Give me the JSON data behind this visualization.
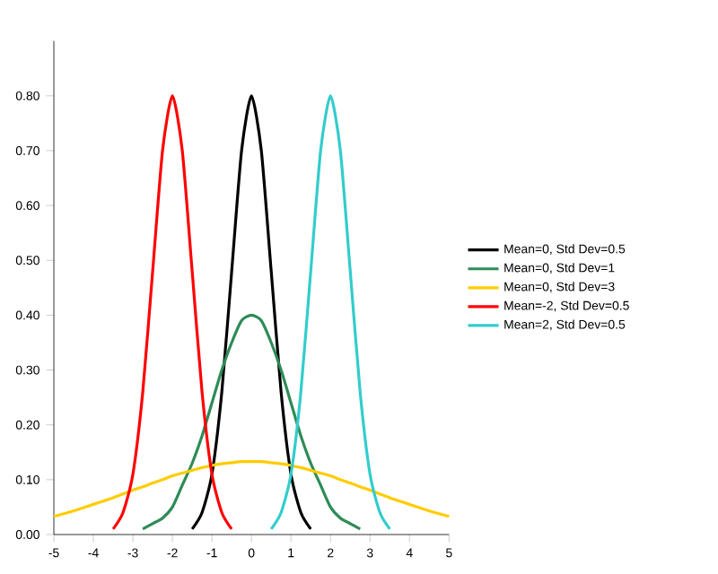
{
  "chart_data": {
    "type": "line",
    "x": [
      -5,
      -4.75,
      -4.5,
      -4.25,
      -4,
      -3.75,
      -3.5,
      -3.25,
      -3,
      -2.75,
      -2.5,
      -2.25,
      -2,
      -1.75,
      -1.5,
      -1.25,
      -1,
      -0.75,
      -0.5,
      -0.25,
      0,
      0.25,
      0.5,
      0.75,
      1,
      1.25,
      1.5,
      1.75,
      2,
      2.25,
      2.5,
      2.75,
      3,
      3.25,
      3.5,
      3.75,
      4,
      4.25,
      4.5,
      4.75,
      5
    ],
    "series": [
      {
        "name": "Mean=0, Std Dev=0.5",
        "color": "#000000",
        "values": [
          null,
          null,
          null,
          null,
          null,
          null,
          null,
          null,
          null,
          null,
          null,
          null,
          null,
          null,
          0.01,
          0.04,
          0.11,
          0.26,
          0.48,
          0.7,
          0.8,
          0.7,
          0.48,
          0.26,
          0.11,
          0.04,
          0.01,
          null,
          null,
          null,
          null,
          null,
          null,
          null,
          null,
          null,
          null,
          null,
          null,
          null,
          null
        ]
      },
      {
        "name": "Mean=0, Std Dev=1",
        "color": "#2e8b57",
        "values": [
          null,
          null,
          null,
          null,
          null,
          null,
          null,
          null,
          null,
          0.01,
          0.02,
          0.03,
          0.05,
          0.09,
          0.13,
          0.18,
          0.24,
          0.3,
          0.35,
          0.39,
          0.4,
          0.39,
          0.35,
          0.3,
          0.24,
          0.18,
          0.13,
          0.09,
          0.05,
          0.03,
          0.02,
          0.01,
          null,
          null,
          null,
          null,
          null,
          null,
          null,
          null,
          null
        ]
      },
      {
        "name": "Mean=0, Std Dev=3",
        "color": "#ffcc00",
        "values": [
          0.033,
          0.038,
          0.043,
          0.049,
          0.055,
          0.061,
          0.067,
          0.074,
          0.081,
          0.087,
          0.094,
          0.1,
          0.107,
          0.112,
          0.117,
          0.122,
          0.126,
          0.129,
          0.131,
          0.133,
          0.133,
          0.133,
          0.131,
          0.129,
          0.126,
          0.122,
          0.117,
          0.112,
          0.107,
          0.1,
          0.094,
          0.087,
          0.081,
          0.074,
          0.067,
          0.061,
          0.055,
          0.049,
          0.043,
          0.038,
          0.033
        ]
      },
      {
        "name": "Mean=-2, Std Dev=0.5",
        "color": "#ff0000",
        "values": [
          null,
          null,
          null,
          null,
          null,
          null,
          0.01,
          0.04,
          0.11,
          0.26,
          0.48,
          0.7,
          0.8,
          0.7,
          0.48,
          0.26,
          0.11,
          0.04,
          0.01,
          null,
          null,
          null,
          null,
          null,
          null,
          null,
          null,
          null,
          null,
          null,
          null,
          null,
          null,
          null,
          null,
          null,
          null,
          null,
          null,
          null,
          null
        ]
      },
      {
        "name": "Mean=2, Std Dev=0.5",
        "color": "#33cccc",
        "values": [
          null,
          null,
          null,
          null,
          null,
          null,
          null,
          null,
          null,
          null,
          null,
          null,
          null,
          null,
          null,
          null,
          null,
          null,
          null,
          null,
          null,
          null,
          0.01,
          0.04,
          0.11,
          0.26,
          0.48,
          0.7,
          0.8,
          0.7,
          0.48,
          0.26,
          0.11,
          0.04,
          0.01,
          null,
          null,
          null,
          null,
          null,
          null
        ]
      }
    ],
    "xlim": [
      -5,
      5
    ],
    "xticks": [
      -5,
      -4,
      -3,
      -2,
      -1,
      0,
      1,
      2,
      3,
      4,
      5
    ],
    "ylim": [
      0,
      0.9
    ],
    "yticks": [
      {
        "value": 0,
        "label": "0.00"
      },
      {
        "value": 0.1,
        "label": "0.10"
      },
      {
        "value": 0.2,
        "label": "0.20"
      },
      {
        "value": 0.3,
        "label": "0.30"
      },
      {
        "value": 0.4,
        "label": "0.40"
      },
      {
        "value": 0.5,
        "label": "0.50"
      },
      {
        "value": 0.6,
        "label": "0.60"
      },
      {
        "value": 0.7,
        "label": "0.70"
      },
      {
        "value": 0.8,
        "label": "0.80"
      }
    ],
    "legend": "right",
    "marker": "none",
    "line_style": "solid",
    "grid": false
  }
}
